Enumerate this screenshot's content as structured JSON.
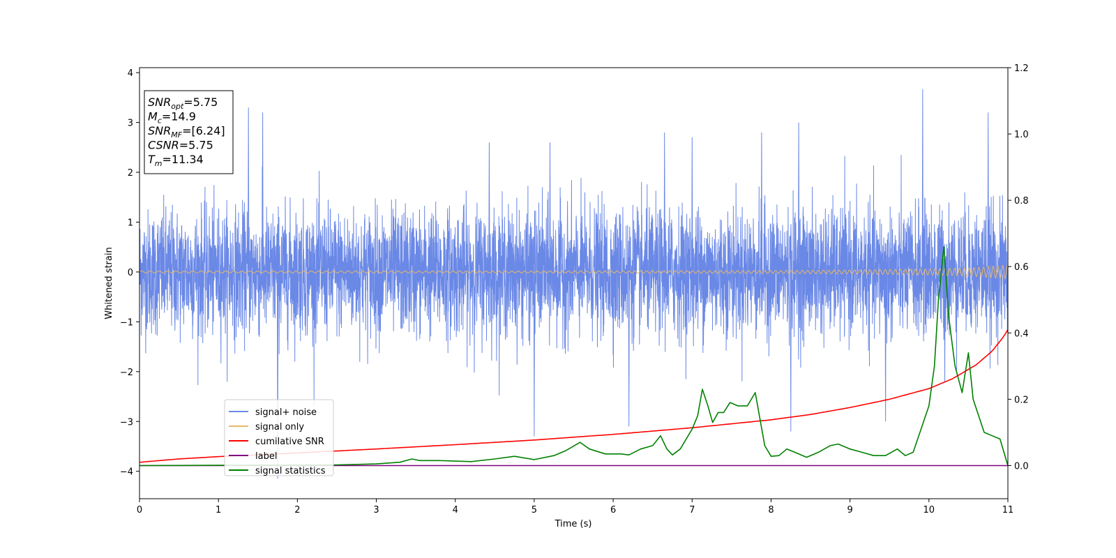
{
  "chart_data": {
    "type": "line",
    "title": "",
    "xlabel": "Time (s)",
    "ylabel": "Whitened strain",
    "xlim": [
      0,
      11
    ],
    "ylim": [
      -4.55,
      4.1
    ],
    "y2lim": [
      -0.1,
      1.2
    ],
    "x_ticks": [
      0,
      1,
      2,
      3,
      4,
      5,
      6,
      7,
      8,
      9,
      10,
      11
    ],
    "y_ticks": [
      4,
      3,
      2,
      1,
      0,
      -1,
      -2,
      -3,
      -4
    ],
    "y_tick_labels": [
      "4",
      "3",
      "2",
      "1",
      "0",
      "−1",
      "−2",
      "−3",
      "−4"
    ],
    "y2_ticks": [
      1.2,
      1.0,
      0.8,
      0.6,
      0.4,
      0.2,
      0.0
    ],
    "y2_tick_labels": [
      "1.2",
      "1.0",
      "0.8",
      "0.6",
      "0.4",
      "0.2",
      "0.0"
    ],
    "grid": false,
    "legend_placement": "lower-left",
    "series": [
      {
        "name": "signal+ noise",
        "color": "#6a88e6",
        "axis": "left",
        "description_stats": {
          "typical_low": -1.6,
          "typical_high": 1.6,
          "max": 3.67,
          "min": -4.15
        },
        "spikes": [
          [
            1.38,
            3.3
          ],
          [
            1.56,
            3.2
          ],
          [
            4.43,
            2.6
          ],
          [
            5.2,
            2.6
          ],
          [
            6.65,
            2.8
          ],
          [
            7.0,
            2.7
          ],
          [
            7.88,
            2.8
          ],
          [
            8.35,
            3.0
          ],
          [
            9.92,
            3.67
          ],
          [
            10.75,
            3.2
          ],
          [
            1.75,
            -4.15
          ],
          [
            5.0,
            -3.3
          ],
          [
            6.2,
            -3.1
          ],
          [
            8.25,
            -3.2
          ],
          [
            9.45,
            -3.0
          ],
          [
            10.2,
            -2.2
          ]
        ]
      },
      {
        "name": "signal only",
        "color": "#e8b86a",
        "axis": "left",
        "points": [
          [
            0,
            0.02
          ],
          [
            5,
            0.02
          ],
          [
            8,
            0.03
          ],
          [
            9,
            0.04
          ],
          [
            10,
            0.06
          ],
          [
            10.5,
            0.08
          ],
          [
            11,
            0.14
          ]
        ]
      },
      {
        "name": "cumilative SNR",
        "color": "#ff0000",
        "axis": "right",
        "points": [
          [
            0,
            0.01
          ],
          [
            0.5,
            0.02
          ],
          [
            1,
            0.027
          ],
          [
            2,
            0.038
          ],
          [
            3,
            0.05
          ],
          [
            4,
            0.063
          ],
          [
            5,
            0.077
          ],
          [
            6,
            0.094
          ],
          [
            7,
            0.114
          ],
          [
            8,
            0.138
          ],
          [
            8.5,
            0.154
          ],
          [
            9,
            0.175
          ],
          [
            9.5,
            0.2
          ],
          [
            10,
            0.232
          ],
          [
            10.3,
            0.262
          ],
          [
            10.6,
            0.304
          ],
          [
            10.8,
            0.345
          ],
          [
            10.95,
            0.39
          ],
          [
            11,
            0.41
          ]
        ]
      },
      {
        "name": "label",
        "color": "#800080",
        "axis": "right",
        "points": [
          [
            0,
            0.0
          ],
          [
            11,
            0.0
          ]
        ]
      },
      {
        "name": "signal statistics",
        "color": "#008000",
        "axis": "right",
        "points": [
          [
            0,
            0.0
          ],
          [
            2.5,
            0.002
          ],
          [
            3.0,
            0.005
          ],
          [
            3.3,
            0.01
          ],
          [
            3.45,
            0.02
          ],
          [
            3.55,
            0.015
          ],
          [
            3.8,
            0.015
          ],
          [
            4.2,
            0.012
          ],
          [
            4.5,
            0.02
          ],
          [
            4.75,
            0.028
          ],
          [
            5.0,
            0.018
          ],
          [
            5.25,
            0.03
          ],
          [
            5.4,
            0.045
          ],
          [
            5.58,
            0.07
          ],
          [
            5.7,
            0.05
          ],
          [
            5.9,
            0.035
          ],
          [
            6.1,
            0.035
          ],
          [
            6.2,
            0.032
          ],
          [
            6.35,
            0.05
          ],
          [
            6.5,
            0.06
          ],
          [
            6.6,
            0.09
          ],
          [
            6.68,
            0.05
          ],
          [
            6.75,
            0.032
          ],
          [
            6.85,
            0.05
          ],
          [
            7.0,
            0.11
          ],
          [
            7.07,
            0.15
          ],
          [
            7.13,
            0.23
          ],
          [
            7.2,
            0.18
          ],
          [
            7.26,
            0.13
          ],
          [
            7.33,
            0.16
          ],
          [
            7.4,
            0.16
          ],
          [
            7.48,
            0.19
          ],
          [
            7.58,
            0.18
          ],
          [
            7.7,
            0.18
          ],
          [
            7.8,
            0.22
          ],
          [
            7.92,
            0.06
          ],
          [
            8.0,
            0.028
          ],
          [
            8.1,
            0.03
          ],
          [
            8.2,
            0.05
          ],
          [
            8.3,
            0.04
          ],
          [
            8.45,
            0.025
          ],
          [
            8.6,
            0.04
          ],
          [
            8.75,
            0.06
          ],
          [
            8.85,
            0.065
          ],
          [
            9.0,
            0.05
          ],
          [
            9.15,
            0.04
          ],
          [
            9.3,
            0.03
          ],
          [
            9.45,
            0.03
          ],
          [
            9.6,
            0.05
          ],
          [
            9.7,
            0.03
          ],
          [
            9.8,
            0.04
          ],
          [
            9.9,
            0.11
          ],
          [
            10.0,
            0.18
          ],
          [
            10.07,
            0.3
          ],
          [
            10.12,
            0.5
          ],
          [
            10.19,
            0.66
          ],
          [
            10.25,
            0.45
          ],
          [
            10.33,
            0.3
          ],
          [
            10.42,
            0.22
          ],
          [
            10.5,
            0.34
          ],
          [
            10.56,
            0.2
          ],
          [
            10.7,
            0.1
          ],
          [
            10.8,
            0.09
          ],
          [
            10.9,
            0.08
          ],
          [
            11.0,
            0.0
          ]
        ]
      }
    ],
    "info_box": [
      {
        "base": "SNR",
        "sub": "opt",
        "value": "=5.75"
      },
      {
        "base": "M",
        "sub": "c",
        "value": "=14.9"
      },
      {
        "base": "SNR",
        "sub": "MF",
        "value": "=[6.24]"
      },
      {
        "base": "CSNR",
        "sub": "",
        "value": "=5.75"
      },
      {
        "base": "T",
        "sub": "m",
        "value": "=11.34"
      }
    ]
  }
}
